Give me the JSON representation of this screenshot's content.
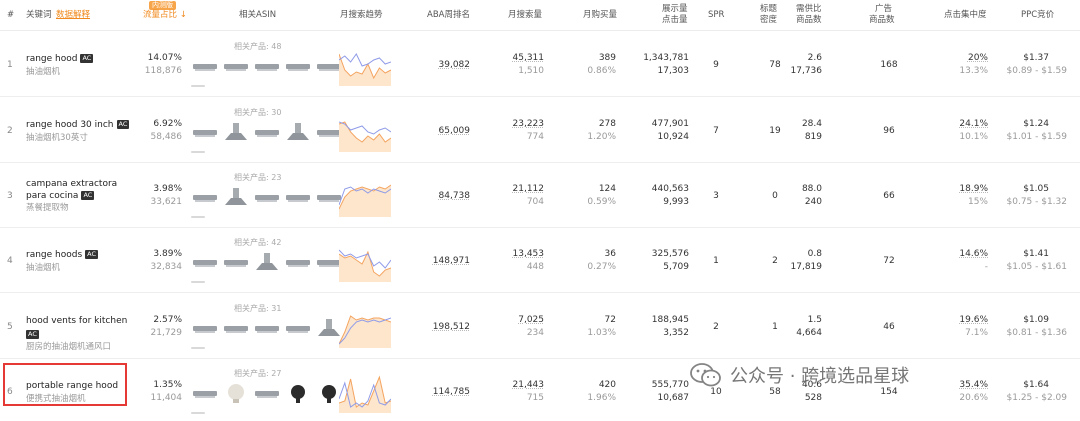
{
  "header": {
    "index": "#",
    "keyword": "关键词",
    "keyword_explain": "数据解释",
    "traffic_tag": "内测版",
    "traffic_share": "流量占比",
    "traffic_sort_icon": "arrow-down",
    "related_asin": "相关ASIN",
    "monthly_trend": "月搜索趋势",
    "aba_rank": "ABA周排名",
    "monthly_search": "月搜索量",
    "monthly_purchase": "月购买量",
    "impressions": "展示量",
    "clicks": "点击量",
    "spr": "SPR",
    "title_density_1": "标题",
    "title_density_2": "密度",
    "supply_demand_1": "需供比",
    "supply_demand_2": "商品数",
    "ad_products_1": "广告",
    "ad_products_2": "商品数",
    "click_concentration": "点击集中度",
    "ppc_bid": "PPC竞价"
  },
  "rows": [
    {
      "index": "1",
      "keyword": "range hood",
      "ac": "AC",
      "translation": "抽油烟机",
      "share": "14.07%",
      "share_count": "118,876",
      "related": "相关产品: 48",
      "aba_rank": "39,082",
      "search": "45,311",
      "search_sub": "1,510",
      "purchase": "389",
      "purchase_rate": "0.86%",
      "impressions": "1,343,781",
      "clicks": "17,303",
      "spr": "9",
      "title_density": "78",
      "sd_ratio": "2.6",
      "sd_products": "17,736",
      "ad_products": "168",
      "click_conc": "20%",
      "click_conc_sub": "13.3%",
      "ppc": "$1.37",
      "ppc_range": "$0.89 - $1.59"
    },
    {
      "index": "2",
      "keyword": "range hood 30 inch",
      "ac": "AC",
      "translation": "抽油烟机30英寸",
      "share": "6.92%",
      "share_count": "58,486",
      "related": "相关产品: 30",
      "aba_rank": "65,009",
      "search": "23,223",
      "search_sub": "774",
      "purchase": "278",
      "purchase_rate": "1.20%",
      "impressions": "477,901",
      "clicks": "10,924",
      "spr": "7",
      "title_density": "19",
      "sd_ratio": "28.4",
      "sd_products": "819",
      "ad_products": "96",
      "click_conc": "24.1%",
      "click_conc_sub": "10.1%",
      "ppc": "$1.24",
      "ppc_range": "$1.01 - $1.59"
    },
    {
      "index": "3",
      "keyword": "campana extractora para cocina",
      "ac": "AC",
      "translation": "蒸餐提取物",
      "share": "3.98%",
      "share_count": "33,621",
      "related": "相关产品: 23",
      "aba_rank": "84,738",
      "search": "21,112",
      "search_sub": "704",
      "purchase": "124",
      "purchase_rate": "0.59%",
      "impressions": "440,563",
      "clicks": "9,993",
      "spr": "3",
      "title_density": "0",
      "sd_ratio": "88.0",
      "sd_products": "240",
      "ad_products": "66",
      "click_conc": "18.9%",
      "click_conc_sub": "15%",
      "ppc": "$1.05",
      "ppc_range": "$0.75 - $1.32"
    },
    {
      "index": "4",
      "keyword": "range hoods",
      "ac": "AC",
      "translation": "抽油烟机",
      "share": "3.89%",
      "share_count": "32,834",
      "related": "相关产品: 42",
      "aba_rank": "148,971",
      "search": "13,453",
      "search_sub": "448",
      "purchase": "36",
      "purchase_rate": "0.27%",
      "impressions": "325,576",
      "clicks": "5,709",
      "spr": "1",
      "title_density": "2",
      "sd_ratio": "0.8",
      "sd_products": "17,819",
      "ad_products": "72",
      "click_conc": "14.6%",
      "click_conc_sub": "-",
      "ppc": "$1.41",
      "ppc_range": "$1.05 - $1.61"
    },
    {
      "index": "5",
      "keyword": "hood vents for kitchen",
      "ac": "AC",
      "translation": "厨房的抽油烟机通风口",
      "share": "2.57%",
      "share_count": "21,729",
      "related": "相关产品: 31",
      "aba_rank": "198,512",
      "search": "7,025",
      "search_sub": "234",
      "purchase": "72",
      "purchase_rate": "1.03%",
      "impressions": "188,945",
      "clicks": "3,352",
      "spr": "2",
      "title_density": "1",
      "sd_ratio": "1.5",
      "sd_products": "4,664",
      "ad_products": "46",
      "click_conc": "19.6%",
      "click_conc_sub": "7.1%",
      "ppc": "$1.09",
      "ppc_range": "$0.81 - $1.36"
    },
    {
      "index": "6",
      "keyword": "portable range hood",
      "ac": "",
      "translation": "便携式抽油烟机",
      "share": "1.35%",
      "share_count": "11,404",
      "related": "相关产品: 27",
      "aba_rank": "114,785",
      "search": "21,443",
      "search_sub": "715",
      "purchase": "420",
      "purchase_rate": "1.96%",
      "impressions": "555,770",
      "clicks": "10,687",
      "spr": "10",
      "title_density": "58",
      "sd_ratio": "40.6",
      "sd_products": "528",
      "ad_products": "154",
      "click_conc": "35.4%",
      "click_conc_sub": "20.6%",
      "ppc": "$1.64",
      "ppc_range": "$1.25 - $2.09"
    }
  ],
  "watermark": {
    "text": "公众号 · 跨境选品星球",
    "icon": "wechat-icon"
  },
  "colors": {
    "accent": "#f08a1e",
    "trend_orange": "#f4a460",
    "trend_fill": "#fde6cc",
    "trend_blue": "#8f9be8",
    "highlight": "#e53935"
  }
}
